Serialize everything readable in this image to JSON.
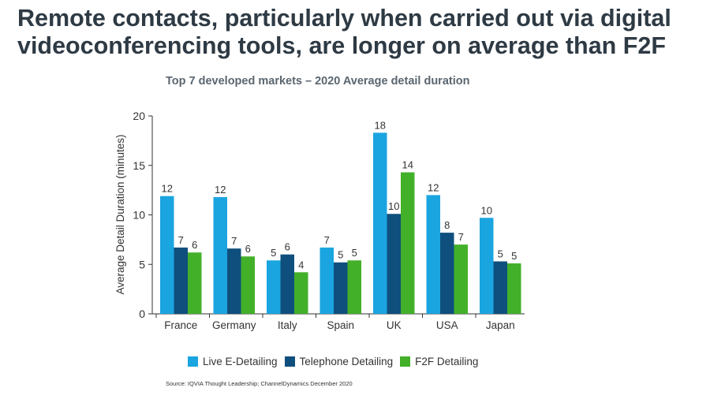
{
  "headline": "Remote contacts, particularly when carried out via digital videoconferencing tools, are longer on average than F2F",
  "source": "Source: IQVIA Thought Leadership; ChannelDynamics December 2020",
  "chart_data": {
    "type": "bar",
    "title": "Top 7 developed markets – 2020 Average detail duration",
    "xlabel": "",
    "ylabel": "Average Detail Duration (minutes)",
    "ylim": [
      0,
      20
    ],
    "yticks": [
      "0",
      "5",
      "10",
      "15",
      "20"
    ],
    "grid": false,
    "legend_position": "bottom",
    "categories": [
      "France",
      "Germany",
      "Italy",
      "Spain",
      "UK",
      "USA",
      "Japan"
    ],
    "series": [
      {
        "name": "Live E-Detailing",
        "color": "#1ba5e0",
        "values": [
          11.9,
          11.8,
          5.4,
          6.7,
          18.3,
          12.0,
          9.7
        ],
        "labels": [
          "12",
          "12",
          "5",
          "7",
          "18",
          "12",
          "10"
        ]
      },
      {
        "name": "Telephone Detailing",
        "color": "#0f4f7d",
        "values": [
          6.7,
          6.6,
          6.0,
          5.2,
          10.1,
          8.2,
          5.3
        ],
        "labels": [
          "7",
          "7",
          "6",
          "5",
          "10",
          "8",
          "5"
        ]
      },
      {
        "name": "F2F Detailing",
        "color": "#43b02a",
        "values": [
          6.2,
          5.8,
          4.2,
          5.4,
          14.3,
          7.0,
          5.1
        ],
        "labels": [
          "6",
          "6",
          "4",
          "5",
          "14",
          "7",
          "5"
        ]
      }
    ]
  }
}
